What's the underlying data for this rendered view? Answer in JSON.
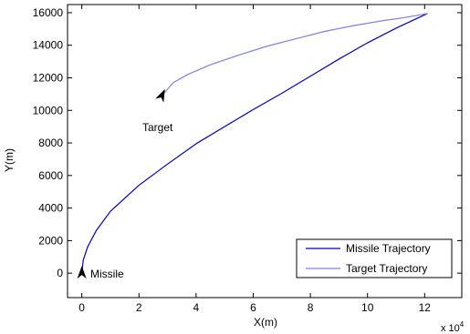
{
  "chart_data": {
    "type": "line",
    "xlabel": "X(m)",
    "ylabel": "Y(m)",
    "x_scale_label": "x 10",
    "x_scale_exponent": "4",
    "xlim": [
      -0.5,
      13.3
    ],
    "ylim": [
      -1500,
      16500
    ],
    "x_unit_multiplier": 10000,
    "x_ticks": [
      "0",
      "2",
      "4",
      "6",
      "8",
      "10",
      "12"
    ],
    "y_ticks": [
      "0",
      "2000",
      "4000",
      "6000",
      "8000",
      "10000",
      "12000",
      "14000",
      "16000"
    ],
    "grid": false,
    "legend_position": "bottom-right",
    "series": [
      {
        "name": "Missile Trajectory",
        "color": "#0000cc",
        "x": [
          0,
          0.05,
          0.2,
          0.5,
          1,
          2,
          3,
          4,
          5,
          6,
          7,
          8,
          9,
          10,
          11,
          12.1
        ],
        "y": [
          0,
          800,
          1600,
          2600,
          3800,
          5400,
          6700,
          7950,
          9000,
          10050,
          11050,
          12100,
          13150,
          14150,
          15050,
          15950
        ]
      },
      {
        "name": "Target Trajectory",
        "color": "#7f7fe8",
        "x": [
          2.8,
          3.2,
          3.7,
          4.5,
          5.5,
          6.5,
          7.5,
          8.5,
          9.5,
          10.5,
          11.3,
          12.1
        ],
        "y": [
          10900,
          11700,
          12200,
          12800,
          13400,
          13950,
          14400,
          14850,
          15200,
          15500,
          15700,
          15950
        ]
      }
    ],
    "annotations": [
      {
        "text": "Target",
        "x": 2.8,
        "y": 10900
      },
      {
        "text": "Missile",
        "x": 0,
        "y": 0
      }
    ]
  }
}
